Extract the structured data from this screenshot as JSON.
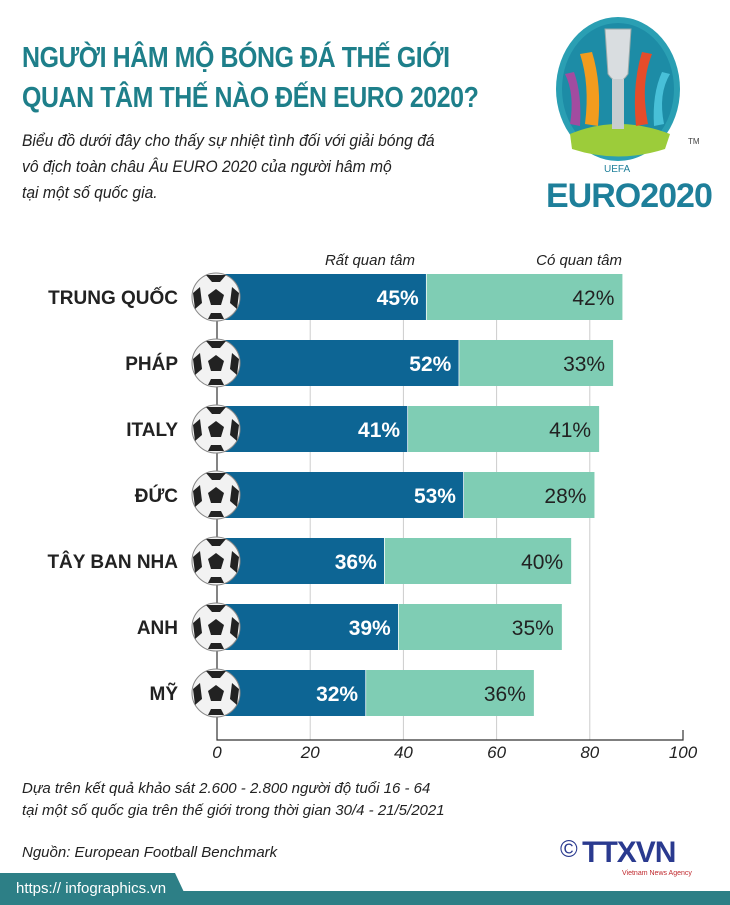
{
  "header": {
    "title_line1": "NGƯỜI HÂM MỘ BÓNG ĐÁ THẾ GIỚI",
    "title_line2": "QUAN TÂM THẾ NÀO ĐẾN EURO 2020?",
    "subtitle_line1": "Biểu đồ dưới đây cho thấy sự nhiệt tình đối với giải bóng đá",
    "subtitle_line2": "vô địch toàn châu Âu EURO 2020 của người hâm mộ",
    "subtitle_line3": "tại một số quốc gia.",
    "logo_text": "EURO2020",
    "logo_sub": "UEFA",
    "logo_tm": "TM"
  },
  "chart_data": {
    "type": "bar",
    "orientation": "horizontal",
    "stacked": true,
    "categories": [
      "TRUNG QUỐC",
      "PHÁP",
      "ITALY",
      "ĐỨC",
      "TÂY BAN NHA",
      "ANH",
      "MỸ"
    ],
    "series": [
      {
        "name": "Rất quan tâm",
        "values": [
          45,
          52,
          41,
          53,
          36,
          39,
          32
        ],
        "color": "#0d6594"
      },
      {
        "name": "Có quan tâm",
        "values": [
          42,
          33,
          41,
          28,
          40,
          35,
          36
        ],
        "color": "#7fcdb4"
      }
    ],
    "xlim": [
      0,
      100
    ],
    "xticks": [
      "0",
      "20",
      "40",
      "60",
      "80",
      "100"
    ],
    "grid": true,
    "legend": "top",
    "value_suffix": "%"
  },
  "notes": {
    "line1": "Dựa trên kết quả khảo sát 2.600 - 2.800 người độ tuổi 16 - 64",
    "line2": "tại một số quốc gia trên thế giới trong thời gian 30/4 - 21/5/2021",
    "source": "Nguồn: European Football Benchmark"
  },
  "footer": {
    "url": "https:// infographics.vn",
    "agency": "TTXVN",
    "agency_sub": "Vietnam News Agency",
    "copyright": "©"
  }
}
